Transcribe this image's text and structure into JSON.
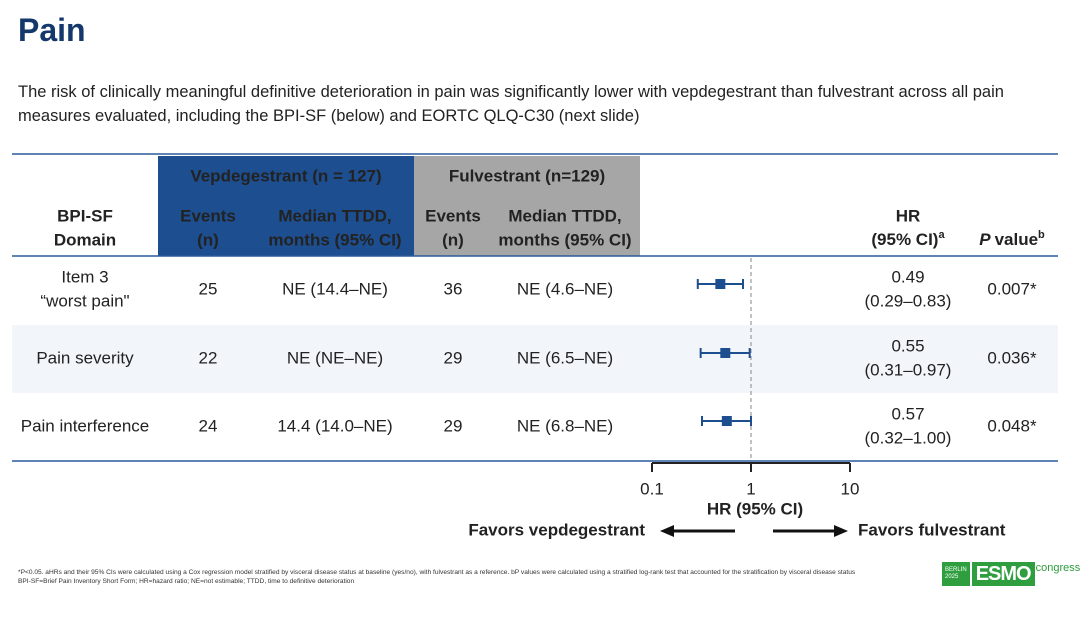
{
  "title": "Pain",
  "subtitle": "The risk of clinically meaningful definitive deterioration in pain was significantly lower with vepdegestrant than fulvestrant across all pain measures evaluated, including the BPI-SF (below) and EORTC QLQ-C30 (next slide)",
  "table": {
    "group_headers": [
      "Vepdegestrant (n = 127)",
      "Fulvestrant (n=129)"
    ],
    "headers": [
      [
        "BPI-SF",
        "Domain"
      ],
      [
        "Events",
        "(n)"
      ],
      [
        "Median TTDD,",
        "months (95% CI)"
      ],
      [
        "Events",
        "(n)"
      ],
      [
        "Median TTDD,",
        "months (95% CI)"
      ]
    ],
    "hr_header": {
      "lines": [
        "HR",
        "(95% CI)"
      ],
      "sup": "a"
    },
    "p_header": {
      "italic": "P",
      "text": "value",
      "sup": "b"
    },
    "rows": [
      [
        [
          "Item 3",
          "“worst pain\""
        ],
        25,
        "NE (14.4–NE)",
        36,
        "NE (4.6–NE)",
        "0.007*"
      ],
      [
        [
          "Pain severity"
        ],
        22,
        "NE (NE–NE)",
        29,
        "NE (6.5–NE)",
        "0.036*"
      ],
      [
        [
          "Pain interference"
        ],
        24,
        "14.4 (14.0–NE)",
        29,
        "NE (6.8–NE)",
        "0.048*"
      ]
    ]
  },
  "chart_data": {
    "type": "forest",
    "values": [
      0.49,
      0.55,
      0.57
    ],
    "lower": [
      0.29,
      0.31,
      0.32
    ],
    "upper": [
      0.83,
      0.97,
      1.0
    ],
    "value_labels": [
      "0.49",
      "0.55",
      "0.57"
    ],
    "ci_labels": [
      "(0.29–0.83)",
      "(0.31–0.97)",
      "(0.32–1.00)"
    ],
    "xlim": [
      0.1,
      10
    ],
    "xticks": [
      0.1,
      1,
      10
    ],
    "log_scale": true,
    "reference_line": 1,
    "xlabel": "HR (95% CI)",
    "left_annotation": "Favors vepdegestrant",
    "right_annotation": "Favors fulvestrant",
    "color": "#1d4e8f"
  },
  "footnotes": [
    "*P<0.05. aHRs and their 95% CIs were calculated using a Cox regression model stratified by visceral disease status at baseline (yes/no), with fulvestrant as a reference. bP values were calculated using a stratified log-rank test that accounted for the stratification by visceral disease status",
    "BPI-SF=Brief Pain Inventory Short Form; HR=hazard ratio; NE=not estimable; TTDD, time to definitive deterioration"
  ],
  "logo": {
    "city": "BERLIN",
    "year": "2025",
    "name": "ESMO",
    "suffix": "congress"
  }
}
